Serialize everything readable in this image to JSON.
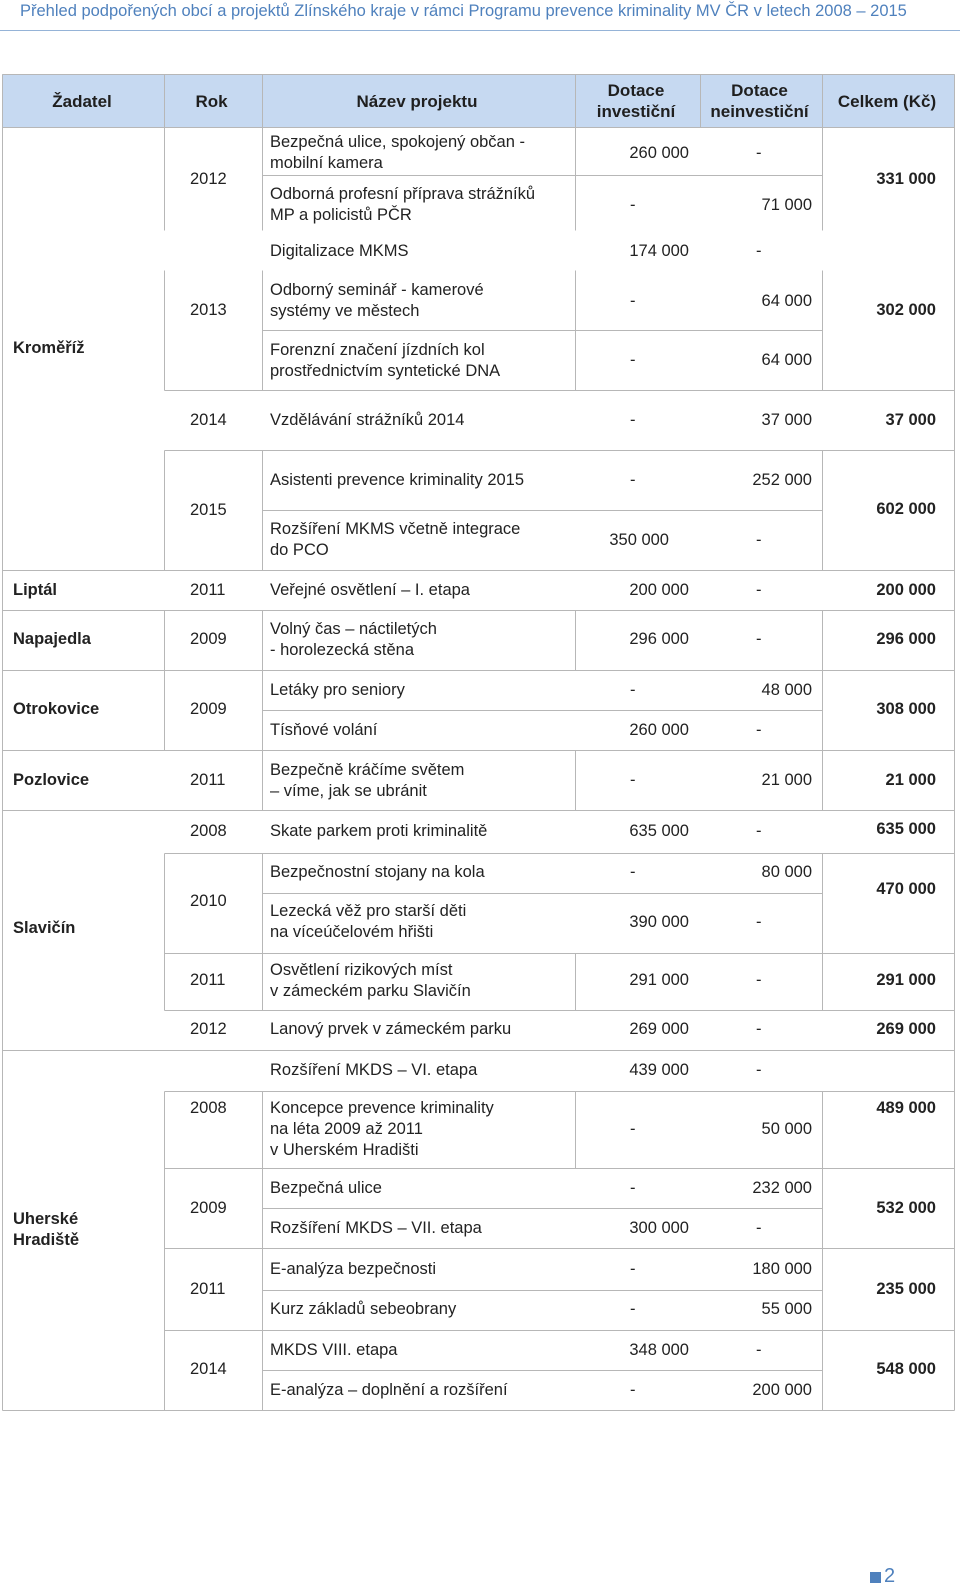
{
  "running_header": "Přehled podpořených obcí a projektů Zlínského kraje v rámci Programu prevence kriminality MV ČR v letech 2008 – 2015",
  "page_number": "2",
  "table": {
    "headers": {
      "applicant": "Žadatel",
      "year": "Rok",
      "project": "Název projektu",
      "inv": [
        "Dotace",
        "investiční"
      ],
      "noninv": [
        "Dotace",
        "neinvestiční"
      ],
      "total": "Celkem (Kč)"
    },
    "applicants": [
      "Kroměříž",
      "Liptál",
      "Napajedla",
      "Otrokovice",
      "Pozlovice",
      "Slavičín",
      [
        "Uherské",
        "Hradiště"
      ]
    ],
    "years": [
      "2012",
      "2013",
      "2014",
      "2015",
      "2011",
      "2009",
      "2009",
      "2011",
      "2008",
      "2010",
      "2011",
      "2012",
      "2008",
      "2009",
      "2011",
      "2014"
    ],
    "projects": [
      [
        "Bezpečná ulice, spokojený občan -",
        "mobilní kamera"
      ],
      [
        "Odborná profesní příprava strážníků",
        "MP a policistů PČR"
      ],
      [
        "Digitalizace MKMS"
      ],
      [
        "Odborný seminář - kamerové",
        "systémy ve městech"
      ],
      [
        "Forenzní značení jízdních kol",
        "prostřednictvím syntetické DNA"
      ],
      [
        "Vzdělávání strážníků 2014"
      ],
      [
        "Asistenti prevence kriminality 2015"
      ],
      [
        "Rozšíření MKMS včetně integrace",
        "do PCO"
      ],
      [
        "Veřejné osvětlení – I. etapa"
      ],
      [
        "Volný čas – náctiletých",
        "- horolezecká stěna"
      ],
      [
        "Letáky pro seniory"
      ],
      [
        "Tísňové volání"
      ],
      [
        "Bezpečně kráčíme světem",
        " – víme, jak se ubránit"
      ],
      [
        "Skate parkem proti kriminalitě"
      ],
      [
        "Bezpečnostní stojany na kola"
      ],
      [
        "Lezecká věž pro starší děti",
        "na víceúčelovém hřišti"
      ],
      [
        "Osvětlení rizikových míst",
        "v zámeckém parku Slavičín"
      ],
      [
        "Lanový prvek v zámeckém parku"
      ],
      [
        "Rozšíření MKDS – VI. etapa"
      ],
      [
        "Koncepce prevence kriminality",
        "na léta 2009 až 2011",
        "v Uherském Hradišti"
      ],
      [
        "Bezpečná ulice"
      ],
      [
        "Rozšíření MKDS – VII. etapa"
      ],
      [
        "E-analýza bezpečnosti"
      ],
      [
        "Kurz základů sebeobrany"
      ],
      [
        "MKDS VIII. etapa"
      ],
      [
        "E-analýza – doplnění a rozšíření"
      ]
    ],
    "inv": [
      "260 000",
      "-",
      "174 000",
      "-",
      "-",
      "-",
      "-",
      "350 000",
      "200 000",
      "296 000",
      "-",
      "260 000",
      "-",
      "635 000",
      "-",
      "390 000",
      "291 000",
      "269 000",
      "439 000",
      "-",
      "-",
      "300 000",
      "-",
      "-",
      "348 000",
      "-"
    ],
    "noninv": [
      "-",
      "71 000",
      "-",
      "64 000",
      "64 000",
      "37 000",
      "252 000",
      "-",
      "-",
      "-",
      "48 000",
      "-",
      "21 000",
      "-",
      "80 000",
      "-",
      "-",
      "-",
      "-",
      "50 000",
      "232 000",
      "-",
      "180 000",
      "55 000",
      "-",
      "200 000"
    ],
    "totals": [
      "331 000",
      "302 000",
      "37 000",
      "602 000",
      "200 000",
      "296 000",
      "308 000",
      "21 000",
      "635 000",
      "470 000",
      "291 000",
      "269 000",
      "489 000",
      "532 000",
      "235 000",
      "548 000"
    ]
  }
}
